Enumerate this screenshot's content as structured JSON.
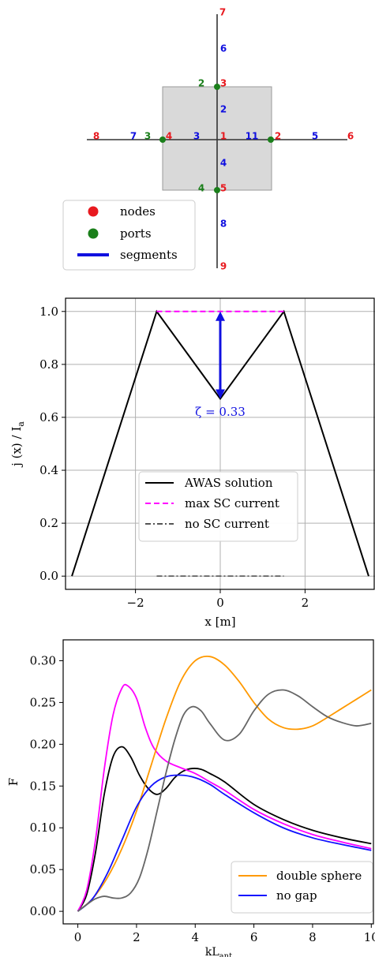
{
  "chart_data": [
    {
      "type": "diagram",
      "title": "",
      "node_labels": [
        {
          "id": "1",
          "kind": "node",
          "color": "#e8191f"
        },
        {
          "id": "2",
          "kind": "node",
          "color": "#e8191f"
        },
        {
          "id": "3",
          "kind": "node",
          "color": "#e8191f"
        },
        {
          "id": "4",
          "kind": "node",
          "color": "#e8191f"
        },
        {
          "id": "5",
          "kind": "node",
          "color": "#e8191f"
        },
        {
          "id": "6",
          "kind": "node",
          "color": "#e8191f"
        },
        {
          "id": "7",
          "kind": "node",
          "color": "#e8191f"
        },
        {
          "id": "8",
          "kind": "node",
          "color": "#e8191f"
        },
        {
          "id": "9",
          "kind": "node",
          "color": "#e8191f"
        }
      ],
      "segment_labels": [
        "1",
        "2",
        "3",
        "4",
        "5",
        "6",
        "7",
        "8"
      ],
      "port_labels": [
        "1",
        "2",
        "3",
        "4"
      ],
      "colors": {
        "node": "#e8191f",
        "port": "#1a7f1a",
        "segment": "#1010e0",
        "box": "#d9d9d9"
      },
      "legend": [
        {
          "label": "nodes",
          "marker": "circle",
          "color": "#e8191f"
        },
        {
          "label": "ports",
          "marker": "circle",
          "color": "#1a7f1a"
        },
        {
          "label": "segments",
          "marker": "line",
          "color": "#1010e0"
        }
      ]
    },
    {
      "type": "line",
      "title": "",
      "xlabel": "x [m]",
      "ylabel": "j (x) / I",
      "ylabel_sub": "a",
      "xlim": [
        -3.65,
        3.65
      ],
      "ylim": [
        -0.05,
        1.05
      ],
      "xticks": [
        -2,
        0,
        2
      ],
      "yticks": [
        0.0,
        0.2,
        0.4,
        0.6,
        0.8,
        1.0
      ],
      "ytick_labels": [
        "0.0",
        "0.2",
        "0.4",
        "0.6",
        "0.8",
        "1.0"
      ],
      "grid": true,
      "series": [
        {
          "name": "AWAS solution",
          "color": "#000000",
          "dash": "solid",
          "x": [
            -3.5,
            -1.5,
            0,
            1.5,
            3.5
          ],
          "y": [
            0,
            1.0,
            0.67,
            1.0,
            0
          ]
        },
        {
          "name": "max SC current",
          "color": "#ff00ff",
          "dash": "dashed",
          "x": [
            -1.5,
            1.5
          ],
          "y": [
            1.0,
            1.0
          ]
        },
        {
          "name": "no SC current",
          "color": "#555555",
          "dash": "dashdot",
          "x": [
            -1.5,
            1.5
          ],
          "y": [
            0.0,
            0.0
          ]
        }
      ],
      "annotation": {
        "text": "ζ = 0.33",
        "x": 0,
        "y": 0.62,
        "color": "#1010e0",
        "arrow_from": 0.67,
        "arrow_to": 1.0
      },
      "legend_position": "center-bottom"
    },
    {
      "type": "line",
      "title": "",
      "xlabel": "kL",
      "xlabel_sub": "ant",
      "ylabel": "F",
      "xlim": [
        -0.5,
        10.1
      ],
      "ylim": [
        -0.015,
        0.325
      ],
      "xticks": [
        0,
        2,
        4,
        6,
        8,
        10
      ],
      "yticks": [
        0.0,
        0.05,
        0.1,
        0.15,
        0.2,
        0.25,
        0.3
      ],
      "ytick_labels": [
        "0.00",
        "0.05",
        "0.10",
        "0.15",
        "0.20",
        "0.25",
        "0.30"
      ],
      "grid": false,
      "series": [
        {
          "name": "",
          "color": "#000000",
          "x": [
            0,
            0.3,
            0.6,
            0.9,
            1.2,
            1.5,
            1.8,
            2.1,
            2.4,
            2.7,
            3.0,
            3.3,
            3.6,
            3.9,
            4.2,
            4.5,
            5.0,
            6.0,
            7.0,
            8.0,
            9.0,
            10.0
          ],
          "y": [
            0.0,
            0.02,
            0.07,
            0.14,
            0.185,
            0.197,
            0.185,
            0.163,
            0.147,
            0.14,
            0.147,
            0.16,
            0.168,
            0.171,
            0.17,
            0.165,
            0.155,
            0.128,
            0.11,
            0.097,
            0.088,
            0.081
          ]
        },
        {
          "name": "",
          "color": "#ff00ff",
          "x": [
            0,
            0.3,
            0.6,
            0.9,
            1.2,
            1.5,
            1.7,
            2.0,
            2.3,
            2.6,
            3.0,
            3.5,
            4.0,
            4.5,
            5.0,
            6.0,
            7.0,
            8.0,
            9.0,
            10.0
          ],
          "y": [
            0.0,
            0.025,
            0.085,
            0.17,
            0.235,
            0.267,
            0.27,
            0.255,
            0.22,
            0.195,
            0.18,
            0.172,
            0.165,
            0.155,
            0.145,
            0.122,
            0.105,
            0.092,
            0.083,
            0.075
          ]
        },
        {
          "name": "double sphere",
          "color": "#ff9900",
          "x": [
            0,
            0.5,
            1.0,
            1.5,
            2.0,
            2.5,
            3.0,
            3.5,
            4.0,
            4.5,
            5.0,
            5.5,
            6.0,
            6.5,
            7.0,
            7.5,
            8.0,
            8.5,
            9.0,
            9.5,
            10.0
          ],
          "y": [
            0.0,
            0.015,
            0.04,
            0.075,
            0.12,
            0.175,
            0.23,
            0.275,
            0.3,
            0.305,
            0.295,
            0.275,
            0.25,
            0.23,
            0.22,
            0.218,
            0.222,
            0.232,
            0.243,
            0.254,
            0.265
          ]
        },
        {
          "name": "no gap",
          "color": "#1010ff",
          "x": [
            0,
            0.5,
            1.0,
            1.5,
            2.0,
            2.5,
            3.0,
            3.5,
            4.0,
            4.5,
            5.0,
            6.0,
            7.0,
            8.0,
            9.0,
            10.0
          ],
          "y": [
            0.0,
            0.015,
            0.045,
            0.085,
            0.125,
            0.15,
            0.161,
            0.163,
            0.16,
            0.152,
            0.14,
            0.118,
            0.1,
            0.088,
            0.08,
            0.073
          ]
        },
        {
          "name": "",
          "color": "#666666",
          "x": [
            0,
            0.3,
            0.6,
            0.9,
            1.2,
            1.5,
            1.8,
            2.1,
            2.4,
            2.7,
            3.0,
            3.3,
            3.6,
            3.9,
            4.2,
            4.5,
            5.0,
            5.5,
            6.0,
            6.5,
            7.0,
            7.5,
            8.0,
            8.5,
            9.0,
            9.5,
            10.0
          ],
          "y": [
            0.0,
            0.008,
            0.015,
            0.018,
            0.016,
            0.016,
            0.022,
            0.04,
            0.075,
            0.12,
            0.165,
            0.205,
            0.235,
            0.245,
            0.24,
            0.225,
            0.205,
            0.212,
            0.24,
            0.26,
            0.265,
            0.258,
            0.245,
            0.233,
            0.226,
            0.222,
            0.225
          ]
        }
      ],
      "legend_position": "lower-right"
    }
  ]
}
